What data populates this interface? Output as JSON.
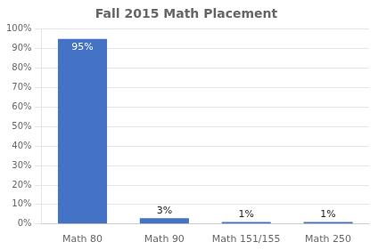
{
  "chart_data": {
    "type": "bar",
    "title": "Fall 2015 Math Placement",
    "categories": [
      "Math 80",
      "Math 90",
      "Math 151/155",
      "Math 250"
    ],
    "values": [
      0.95,
      0.03,
      0.01,
      0.01
    ],
    "value_labels": [
      "95%",
      "3%",
      "1%",
      "1%"
    ],
    "data_labels": true,
    "color": "#4472C4",
    "ylim": [
      0,
      1.0
    ],
    "yticks": [
      {
        "value": 0.0,
        "label": "0%"
      },
      {
        "value": 0.1,
        "label": "10%"
      },
      {
        "value": 0.2,
        "label": "20%"
      },
      {
        "value": 0.3,
        "label": "30%"
      },
      {
        "value": 0.4,
        "label": "40%"
      },
      {
        "value": 0.5,
        "label": "50%"
      },
      {
        "value": 0.6,
        "label": "60%"
      },
      {
        "value": 0.7,
        "label": "70%"
      },
      {
        "value": 0.8,
        "label": "80%"
      },
      {
        "value": 0.9,
        "label": "90%"
      },
      {
        "value": 1.0,
        "label": "100%"
      }
    ],
    "grid": true
  }
}
